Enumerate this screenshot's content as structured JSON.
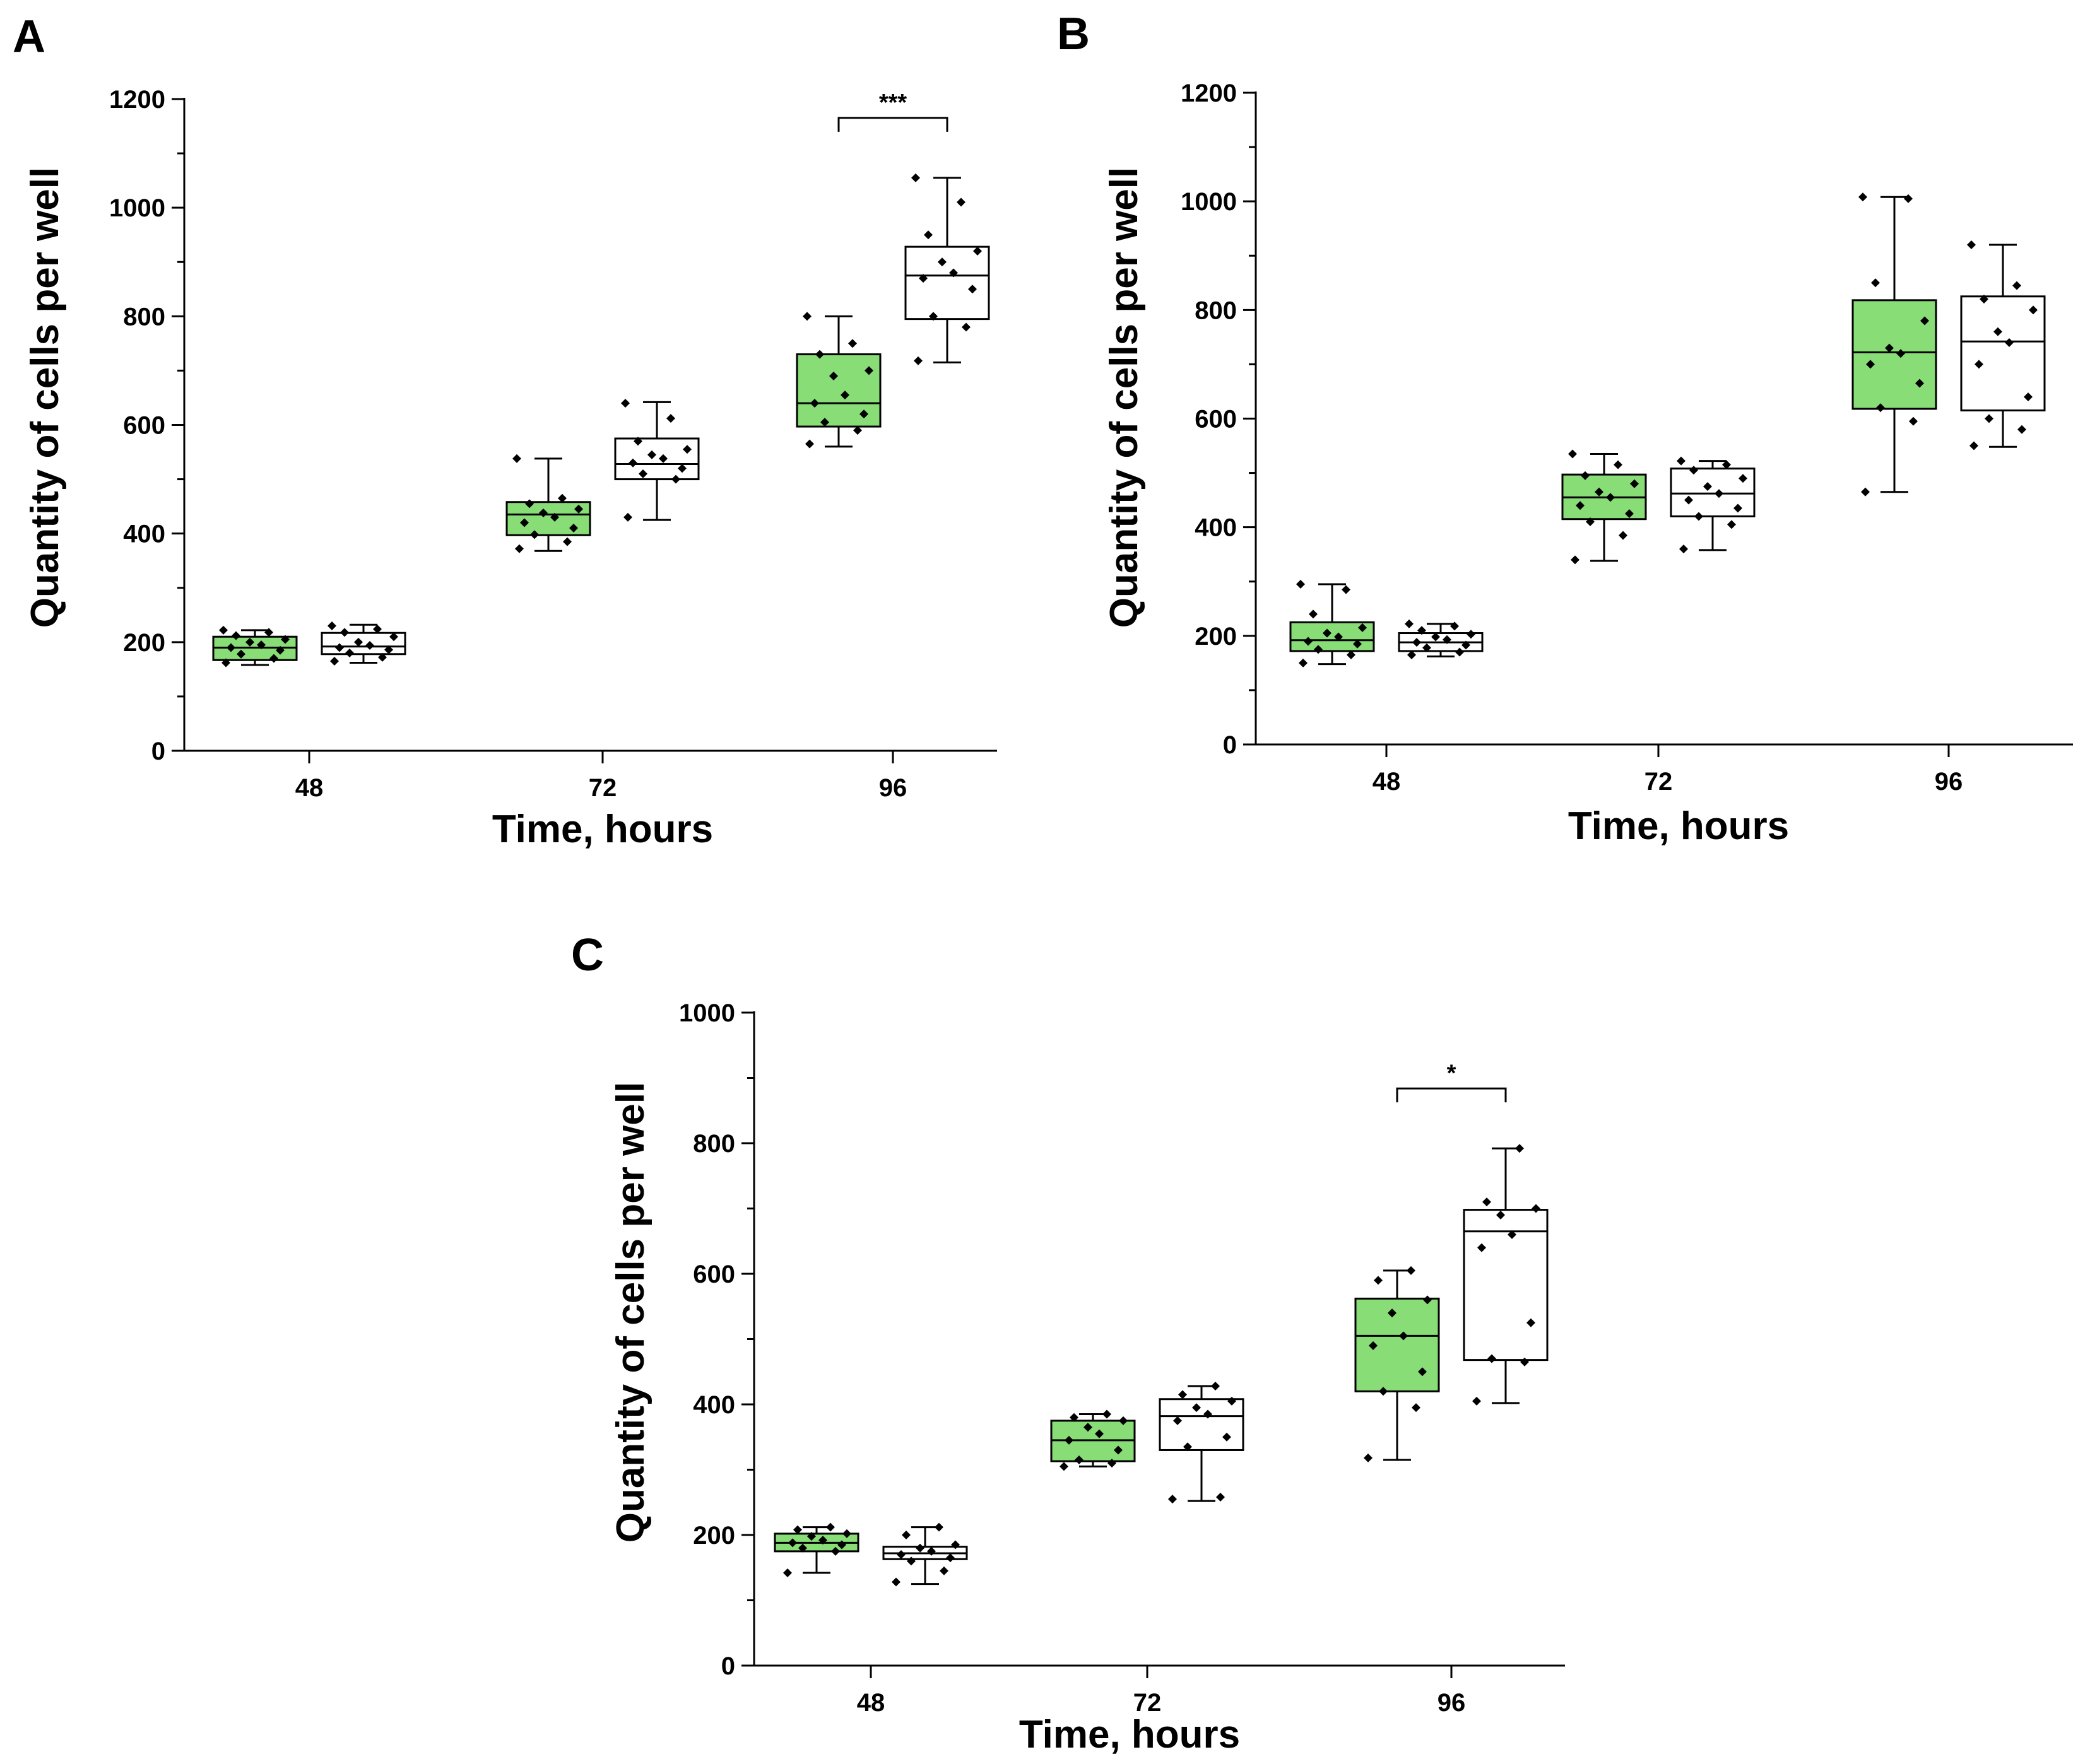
{
  "colors": {
    "green": "#88dd77",
    "white": "#ffffff",
    "stroke": "#000000"
  },
  "chart_data": [
    {
      "type": "box",
      "panel_label": "A",
      "xlabel": "Time, hours",
      "ylabel": "Quantity of cells per well",
      "categories": [
        "48",
        "72",
        "96"
      ],
      "ylim": [
        0,
        1200
      ],
      "yticks": [
        0,
        200,
        400,
        600,
        800,
        1000,
        1200
      ],
      "box_fill_colors": [
        "#88dd77",
        "#ffffff"
      ],
      "boxes": [
        {
          "category": "48",
          "color": "green",
          "min": 158,
          "q1": 167,
          "median": 190,
          "q3": 210,
          "max": 222,
          "points": [
            162,
            170,
            178,
            185,
            190,
            195,
            200,
            205,
            212,
            218,
            222
          ]
        },
        {
          "category": "48",
          "color": "white",
          "min": 162,
          "q1": 178,
          "median": 192,
          "q3": 217,
          "max": 232,
          "points": [
            165,
            172,
            180,
            186,
            190,
            194,
            200,
            210,
            218,
            224,
            230
          ]
        },
        {
          "category": "72",
          "color": "green",
          "min": 368,
          "q1": 397,
          "median": 435,
          "q3": 458,
          "max": 538,
          "points": [
            372,
            385,
            398,
            410,
            420,
            430,
            438,
            445,
            455,
            465,
            538
          ]
        },
        {
          "category": "72",
          "color": "white",
          "min": 425,
          "q1": 500,
          "median": 528,
          "q3": 575,
          "max": 642,
          "points": [
            430,
            500,
            510,
            520,
            530,
            538,
            545,
            555,
            570,
            612,
            640
          ]
        },
        {
          "category": "96",
          "color": "green",
          "min": 560,
          "q1": 597,
          "median": 640,
          "q3": 730,
          "max": 800,
          "points": [
            565,
            590,
            605,
            620,
            640,
            655,
            690,
            700,
            730,
            750,
            800
          ]
        },
        {
          "category": "96",
          "color": "white",
          "min": 715,
          "q1": 795,
          "median": 875,
          "q3": 928,
          "max": 1055,
          "points": [
            718,
            780,
            800,
            850,
            870,
            880,
            900,
            920,
            950,
            1010,
            1055
          ]
        }
      ],
      "significance": [
        {
          "category": "96",
          "label": "***"
        }
      ]
    },
    {
      "type": "box",
      "panel_label": "B",
      "xlabel": "Time, hours",
      "ylabel": "Quantity of cells per well",
      "categories": [
        "48",
        "72",
        "96"
      ],
      "ylim": [
        0,
        1200
      ],
      "yticks": [
        0,
        200,
        400,
        600,
        800,
        1000,
        1200
      ],
      "box_fill_colors": [
        "#88dd77",
        "#ffffff"
      ],
      "boxes": [
        {
          "category": "48",
          "color": "green",
          "min": 148,
          "q1": 172,
          "median": 192,
          "q3": 225,
          "max": 295,
          "points": [
            150,
            165,
            175,
            185,
            190,
            198,
            205,
            215,
            240,
            285,
            295
          ]
        },
        {
          "category": "48",
          "color": "white",
          "min": 162,
          "q1": 172,
          "median": 188,
          "q3": 205,
          "max": 222,
          "points": [
            165,
            170,
            178,
            183,
            188,
            193,
            198,
            203,
            210,
            218,
            222
          ]
        },
        {
          "category": "72",
          "color": "green",
          "min": 338,
          "q1": 415,
          "median": 455,
          "q3": 497,
          "max": 535,
          "points": [
            340,
            385,
            410,
            425,
            440,
            455,
            465,
            480,
            495,
            515,
            535
          ]
        },
        {
          "category": "72",
          "color": "white",
          "min": 358,
          "q1": 420,
          "median": 462,
          "q3": 508,
          "max": 522,
          "points": [
            360,
            405,
            420,
            435,
            450,
            462,
            475,
            490,
            505,
            515,
            522
          ]
        },
        {
          "category": "96",
          "color": "green",
          "min": 465,
          "q1": 618,
          "median": 722,
          "q3": 818,
          "max": 1008,
          "points": [
            465,
            595,
            620,
            665,
            700,
            720,
            730,
            780,
            850,
            1005,
            1008
          ]
        },
        {
          "category": "96",
          "color": "white",
          "min": 548,
          "q1": 615,
          "median": 742,
          "q3": 825,
          "max": 920,
          "points": [
            550,
            580,
            600,
            640,
            700,
            740,
            760,
            800,
            820,
            845,
            920
          ]
        }
      ],
      "significance": []
    },
    {
      "type": "box",
      "panel_label": "C",
      "xlabel": "Time, hours",
      "ylabel": "Quantity of cells per well",
      "categories": [
        "48",
        "72",
        "96"
      ],
      "ylim": [
        0,
        1000
      ],
      "yticks": [
        0,
        200,
        400,
        600,
        800,
        1000
      ],
      "box_fill_colors": [
        "#88dd77",
        "#ffffff"
      ],
      "boxes": [
        {
          "category": "48",
          "color": "green",
          "min": 142,
          "q1": 175,
          "median": 188,
          "q3": 202,
          "max": 212,
          "points": [
            142,
            175,
            180,
            185,
            188,
            192,
            198,
            202,
            208,
            212
          ]
        },
        {
          "category": "48",
          "color": "white",
          "min": 125,
          "q1": 163,
          "median": 172,
          "q3": 182,
          "max": 212,
          "points": [
            128,
            145,
            160,
            165,
            170,
            175,
            180,
            185,
            200,
            212
          ]
        },
        {
          "category": "72",
          "color": "green",
          "min": 305,
          "q1": 313,
          "median": 345,
          "q3": 375,
          "max": 385,
          "points": [
            305,
            310,
            315,
            330,
            345,
            355,
            365,
            375,
            380,
            385
          ]
        },
        {
          "category": "72",
          "color": "white",
          "min": 252,
          "q1": 330,
          "median": 382,
          "q3": 408,
          "max": 428,
          "points": [
            255,
            258,
            335,
            350,
            375,
            385,
            395,
            405,
            415,
            428
          ]
        },
        {
          "category": "96",
          "color": "green",
          "min": 315,
          "q1": 420,
          "median": 505,
          "q3": 562,
          "max": 605,
          "points": [
            318,
            395,
            420,
            450,
            490,
            505,
            540,
            560,
            590,
            605
          ]
        },
        {
          "category": "96",
          "color": "white",
          "min": 402,
          "q1": 468,
          "median": 665,
          "q3": 698,
          "max": 792,
          "points": [
            405,
            465,
            470,
            525,
            640,
            660,
            690,
            700,
            710,
            792
          ]
        }
      ],
      "significance": [
        {
          "category": "96",
          "label": "*"
        }
      ]
    }
  ]
}
